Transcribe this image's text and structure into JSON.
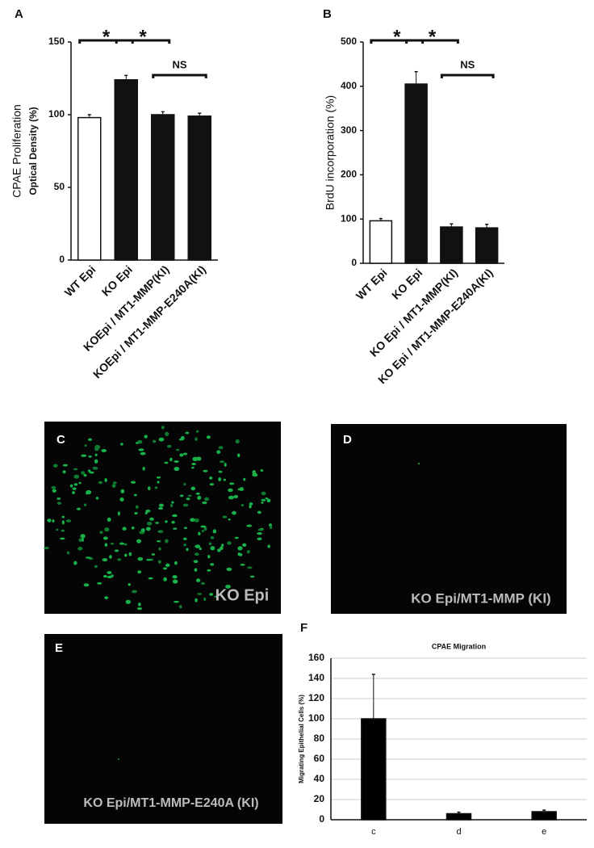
{
  "chart_data": [
    {
      "type": "bar",
      "panel": "A",
      "y_label": "CPAE Proliferation",
      "y_sublabel": "Optical Density (%)",
      "categories": [
        "WT Epi",
        "KO Epi",
        "KOEpi / MT1-MMP(KI)",
        "KOEpi / MT1-MMP-E240A(KI)"
      ],
      "values": [
        98,
        124,
        100,
        99
      ],
      "errors": [
        2,
        3,
        2,
        2
      ],
      "colors": [
        "#ffffff",
        "#111111",
        "#111111",
        "#111111"
      ],
      "ylim": [
        0,
        150
      ],
      "yticks": [
        0,
        50,
        100,
        150
      ],
      "grid": false,
      "annotations": [
        "*",
        "*",
        "NS"
      ]
    },
    {
      "type": "bar",
      "panel": "B",
      "y_label": "BrdU incorporation (%)",
      "categories": [
        "WT Epi",
        "KO Epi",
        "KO Epi / MT1-MMP(KI)",
        "KO Epi / MT1-MMP-E240A(KI)"
      ],
      "values": [
        96,
        405,
        82,
        80
      ],
      "errors": [
        5,
        28,
        7,
        8
      ],
      "colors": [
        "#ffffff",
        "#111111",
        "#111111",
        "#111111"
      ],
      "ylim": [
        0,
        500
      ],
      "yticks": [
        0,
        100,
        200,
        300,
        400,
        500
      ],
      "grid": false,
      "annotations": [
        "*",
        "*",
        "NS"
      ]
    },
    {
      "type": "bar",
      "panel": "F",
      "title": "CPAE Migration",
      "y_label": "Migrating Epithelial Cells (%)",
      "categories": [
        "c",
        "d",
        "e"
      ],
      "values": [
        100,
        6,
        8
      ],
      "errors": [
        44,
        1.5,
        1.5
      ],
      "colors": [
        "#000000",
        "#000000",
        "#000000"
      ],
      "ylim": [
        0,
        160
      ],
      "yticks": [
        0,
        20,
        40,
        60,
        80,
        100,
        120,
        140,
        160
      ],
      "grid": true
    }
  ],
  "micrographs": [
    {
      "panel": "C",
      "caption": "KO Epi"
    },
    {
      "panel": "D",
      "caption": "KO Epi/MT1-MMP (KI)"
    },
    {
      "panel": "E",
      "caption": "KO Epi/MT1-MMP-E240A (KI)"
    }
  ]
}
